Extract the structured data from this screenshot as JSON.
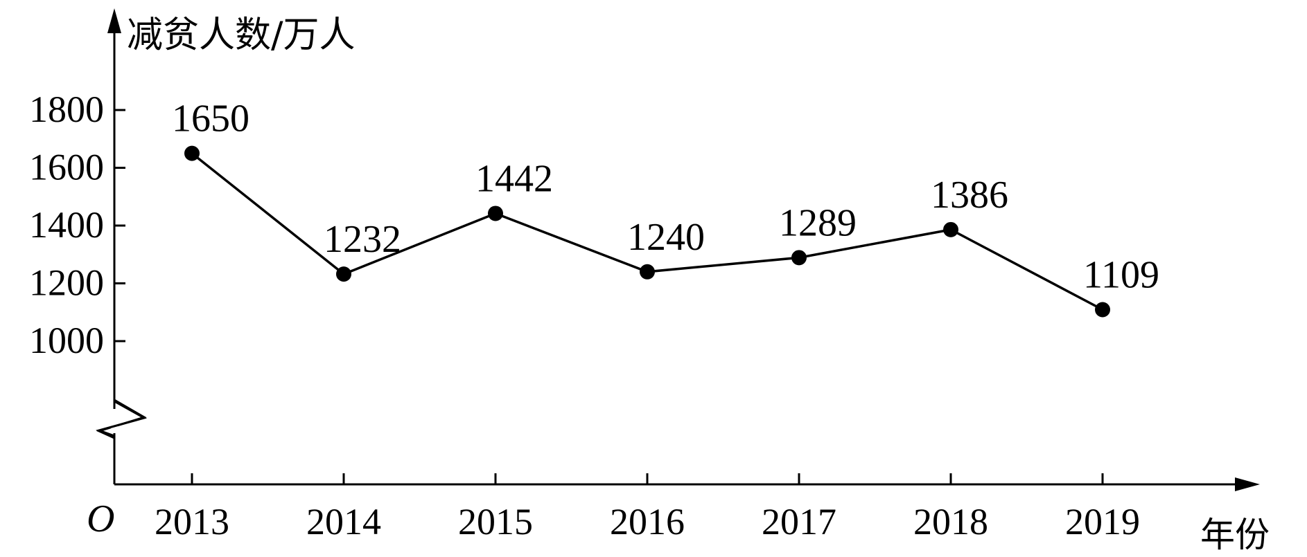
{
  "chart_data": {
    "type": "line",
    "ylabel": "减贫人数/万人",
    "xlabel": "年份",
    "origin_label": "O",
    "categories": [
      "2013",
      "2014",
      "2015",
      "2016",
      "2017",
      "2018",
      "2019"
    ],
    "series": [
      {
        "values": [
          1650,
          1232,
          1442,
          1240,
          1289,
          1386,
          1109
        ]
      }
    ],
    "data_labels": [
      "1650",
      "1232",
      "1442",
      "1240",
      "1289",
      "1386",
      "1109"
    ],
    "yticks": [
      1000,
      1200,
      1400,
      1600,
      1800
    ],
    "ytick_labels": [
      "1000",
      "1200",
      "1400",
      "1600",
      "1800"
    ],
    "ylim": [
      1000,
      1800
    ],
    "axis_break": true,
    "grid": false,
    "colors": {
      "line": "#000000",
      "marker": "#000000"
    }
  }
}
